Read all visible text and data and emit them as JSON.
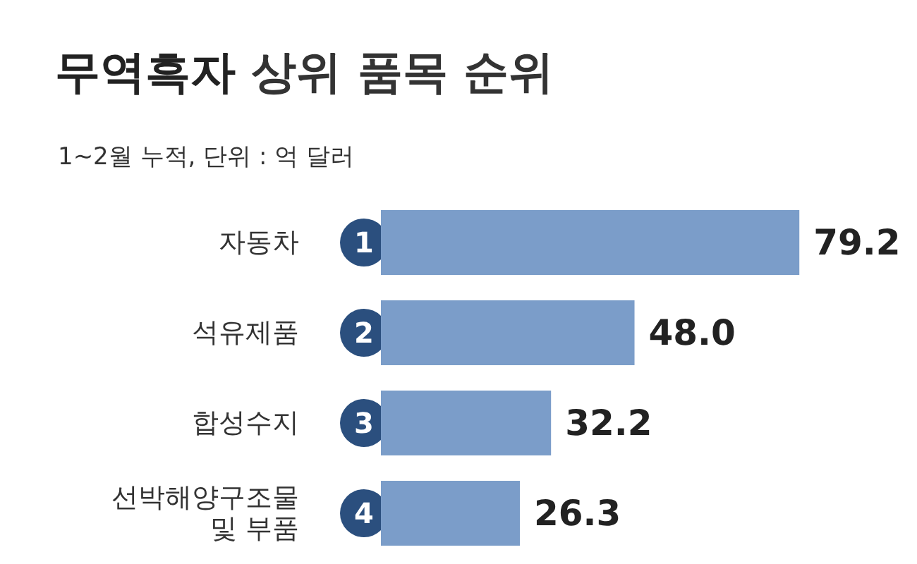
{
  "chart_data": {
    "type": "bar",
    "orientation": "horizontal",
    "title": "무역흑자 상위 품목 순위",
    "subtitle": "1~2월 누적, 단위 : 억 달러",
    "categories": [
      "자동차",
      "석유제품",
      "합성수지",
      "선박해양구조물\n및 부품"
    ],
    "values": [
      79.2,
      48.0,
      32.2,
      26.3
    ],
    "value_labels": [
      "79.2",
      "48.0",
      "32.2",
      "26.3"
    ],
    "color": "#7b9dc9",
    "annotations": [
      "1",
      "2",
      "3",
      "4"
    ]
  }
}
